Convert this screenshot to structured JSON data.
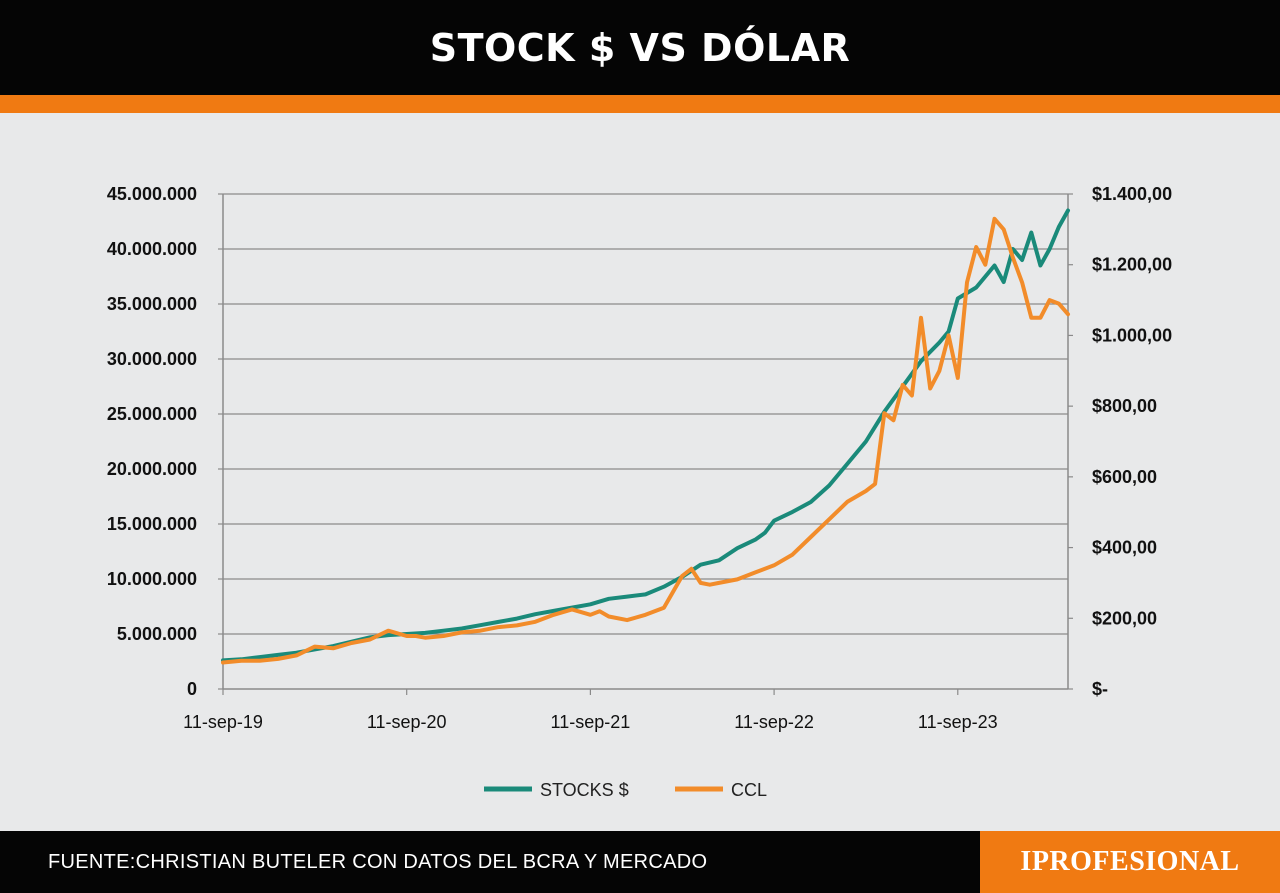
{
  "header": {
    "title": "STOCK $ VS DÓLAR"
  },
  "footer": {
    "source": "FUENTE:CHRISTIAN BUTELER CON DATOS DEL BCRA Y MERCADO",
    "brand": "IPROFESIONAL"
  },
  "colors": {
    "header_bg": "#050505",
    "accent": "#f07a12",
    "background": "#e8e9ea",
    "stocks_line": "#1a8a7a",
    "ccl_line": "#f28c2a"
  },
  "chart_data": {
    "type": "line",
    "x_tick_labels": [
      "11-sep-19",
      "11-sep-20",
      "11-sep-21",
      "11-sep-22",
      "11-sep-23"
    ],
    "y_left": {
      "ticks": [
        0,
        5000000,
        10000000,
        15000000,
        20000000,
        25000000,
        30000000,
        35000000,
        40000000,
        45000000
      ],
      "tick_labels": [
        "0",
        "5.000.000",
        "10.000.000",
        "15.000.000",
        "20.000.000",
        "25.000.000",
        "30.000.000",
        "35.000.000",
        "40.000.000",
        "45.000.000"
      ],
      "range": [
        0,
        45000000
      ]
    },
    "y_right": {
      "ticks": [
        0,
        200,
        400,
        600,
        800,
        1000,
        1200,
        1400
      ],
      "tick_labels": [
        "$-",
        "$200,00",
        "$400,00",
        "$600,00",
        "$800,00",
        "$1.000,00",
        "$1.200,00",
        "$1.400,00"
      ],
      "range": [
        0,
        1400
      ]
    },
    "x_range_years": [
      0,
      4.6
    ],
    "grid": "horizontal",
    "legend_position": "bottom-center",
    "series": [
      {
        "name": "STOCKS $",
        "axis": "left",
        "color": "#1a8a7a",
        "x": [
          0,
          0.1,
          0.2,
          0.3,
          0.4,
          0.5,
          0.6,
          0.7,
          0.8,
          0.9,
          1.0,
          1.1,
          1.2,
          1.3,
          1.4,
          1.5,
          1.6,
          1.7,
          1.8,
          1.9,
          2.0,
          2.1,
          2.2,
          2.3,
          2.4,
          2.5,
          2.6,
          2.7,
          2.8,
          2.9,
          2.95,
          3.0,
          3.1,
          3.2,
          3.3,
          3.4,
          3.5,
          3.6,
          3.7,
          3.8,
          3.9,
          3.95,
          4.0,
          4.1,
          4.2,
          4.25,
          4.3,
          4.35,
          4.4,
          4.45,
          4.5,
          4.55,
          4.6
        ],
        "values": [
          2600000,
          2700000,
          2900000,
          3100000,
          3300000,
          3600000,
          3900000,
          4300000,
          4700000,
          4900000,
          5000000,
          5100000,
          5300000,
          5500000,
          5800000,
          6100000,
          6400000,
          6800000,
          7100000,
          7400000,
          7700000,
          8200000,
          8400000,
          8600000,
          9300000,
          10200000,
          11300000,
          11700000,
          12800000,
          13600000,
          14200000,
          15300000,
          16100000,
          17000000,
          18500000,
          20500000,
          22500000,
          25200000,
          27500000,
          29800000,
          31500000,
          32500000,
          35500000,
          36500000,
          38500000,
          37000000,
          40000000,
          39000000,
          41500000,
          38500000,
          40000000,
          42000000,
          43500000
        ]
      },
      {
        "name": "CCL",
        "axis": "right",
        "color": "#f28c2a",
        "x": [
          0,
          0.1,
          0.2,
          0.3,
          0.4,
          0.5,
          0.6,
          0.7,
          0.8,
          0.9,
          1.0,
          1.05,
          1.1,
          1.2,
          1.3,
          1.4,
          1.5,
          1.6,
          1.7,
          1.8,
          1.9,
          2.0,
          2.05,
          2.1,
          2.2,
          2.3,
          2.4,
          2.5,
          2.55,
          2.6,
          2.65,
          2.7,
          2.8,
          2.9,
          3.0,
          3.1,
          3.2,
          3.3,
          3.4,
          3.5,
          3.55,
          3.6,
          3.65,
          3.7,
          3.75,
          3.8,
          3.85,
          3.9,
          3.95,
          4.0,
          4.05,
          4.1,
          4.15,
          4.2,
          4.25,
          4.3,
          4.35,
          4.4,
          4.45,
          4.5,
          4.55,
          4.6
        ],
        "values": [
          75,
          80,
          80,
          85,
          95,
          120,
          115,
          130,
          140,
          165,
          150,
          150,
          145,
          150,
          160,
          165,
          175,
          180,
          190,
          210,
          225,
          210,
          220,
          205,
          195,
          210,
          230,
          320,
          340,
          300,
          295,
          300,
          310,
          330,
          350,
          380,
          430,
          480,
          530,
          560,
          580,
          780,
          760,
          860,
          830,
          1050,
          850,
          900,
          1000,
          880,
          1150,
          1250,
          1200,
          1330,
          1300,
          1220,
          1150,
          1050,
          1050,
          1100,
          1090,
          1060
        ]
      }
    ]
  }
}
